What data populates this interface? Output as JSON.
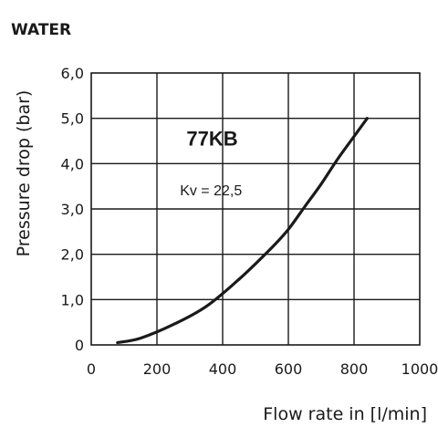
{
  "chart_data": {
    "type": "line",
    "title": "WATER",
    "xlabel": "Flow rate in [l/min]",
    "ylabel": "Pressure drop (bar)",
    "xlim": [
      0,
      1000
    ],
    "ylim": [
      0,
      6
    ],
    "x_ticks": [
      "0",
      "200",
      "400",
      "600",
      "800",
      "1000"
    ],
    "y_ticks": [
      "0",
      "1,0",
      "2,0",
      "3,0",
      "4,0",
      "5,0",
      "6,0"
    ],
    "grid": true,
    "series": [
      {
        "name": "77KB",
        "x": [
          80,
          150,
          250,
          350,
          450,
          550,
          600,
          650,
          700,
          750,
          800,
          840
        ],
        "y": [
          0.05,
          0.15,
          0.45,
          0.85,
          1.45,
          2.15,
          2.55,
          3.05,
          3.55,
          4.1,
          4.6,
          5.0
        ]
      }
    ],
    "annotations": [
      {
        "text": "77KB",
        "x": 290,
        "y": 4.4
      },
      {
        "text": "Kv = 22,5",
        "x": 270,
        "y": 3.3
      }
    ]
  }
}
